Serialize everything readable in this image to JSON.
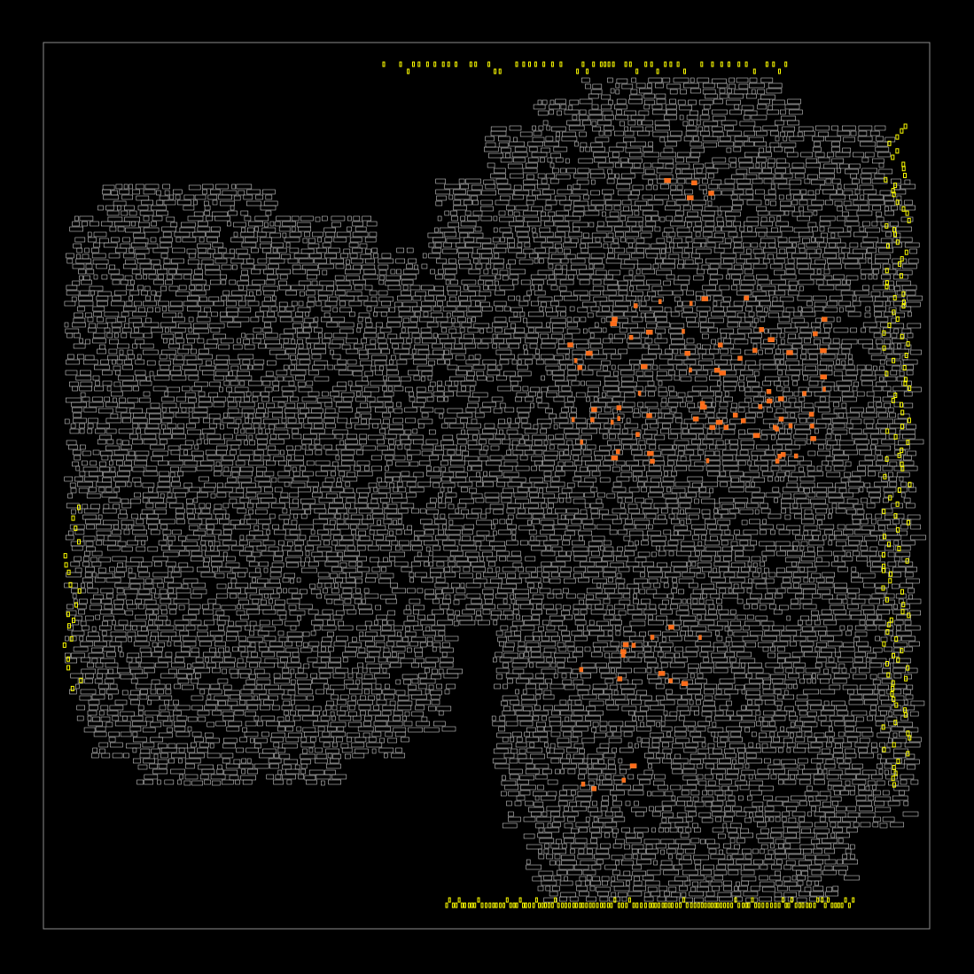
{
  "view": {
    "background_color": "#000000",
    "frame_color": "#8c8c8c"
  },
  "legend": {
    "cell_outline": {
      "label": "",
      "color": "#c8c8c8"
    },
    "io_pad": {
      "label": "",
      "color": "#ffff00"
    },
    "highlighted_cell": {
      "label": "",
      "color": "#ff6a1a"
    }
  }
}
